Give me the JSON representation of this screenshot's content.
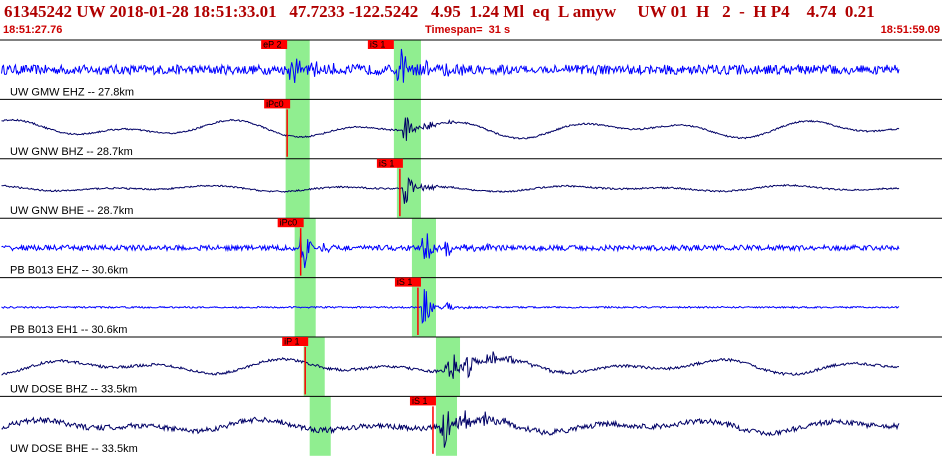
{
  "header": {
    "title": "61345242 UW 2018-01-28 18:51:33.01   47.7233 -122.5242   4.95  1.24 Ml  eq  L amyw     UW 01  H   2  -  H P4    4.74  0.21",
    "time_start": "18:51:27.76",
    "timespan": "Timespan=  31 s",
    "time_end": "18:51:59.09"
  },
  "colors": {
    "title": "#b00000",
    "time_text": "#cc0000",
    "trace_blue": "#0000ff",
    "trace_dark": "#000066",
    "pick": "#ff0000",
    "window": "#90ee90",
    "separator": "#000000"
  },
  "chart_data": {
    "type": "line",
    "x_unit": "s",
    "xlim": [
      0,
      31.33
    ],
    "panels": [
      {
        "label": "UW GMW EHZ -- 27.8km",
        "color": "#0000ff",
        "noise": 0.18,
        "long_period": 0.0,
        "windows": [
          [
            9.5,
            10.3
          ],
          [
            13.1,
            14.0
          ]
        ],
        "picks": [
          {
            "label": "eP 2",
            "time": 9.45,
            "line": false
          },
          {
            "label": "iS 1",
            "time": 13.0,
            "line": false
          }
        ],
        "events": [
          {
            "time": 9.6,
            "amp": 0.45,
            "decay": 1.0
          },
          {
            "time": 13.2,
            "amp": 1.0,
            "decay": 0.9
          }
        ]
      },
      {
        "label": "UW GNW BHZ -- 28.7km",
        "color": "#000066",
        "noise": 0.03,
        "long_period": 0.35,
        "windows": [
          [
            9.5,
            10.3
          ],
          [
            13.1,
            14.0
          ]
        ],
        "picks": [
          {
            "label": "iPc0",
            "time": 9.55,
            "line": true
          }
        ],
        "events": [
          {
            "time": 13.4,
            "amp": 0.55,
            "decay": 0.7
          }
        ]
      },
      {
        "label": "UW GNW BHE -- 28.7km",
        "color": "#000066",
        "noise": 0.03,
        "long_period": 0.12,
        "windows": [
          [
            9.5,
            10.3
          ],
          [
            13.2,
            14.0
          ]
        ],
        "picks": [
          {
            "label": "iS 1",
            "time": 13.3,
            "line": true
          }
        ],
        "events": [
          {
            "time": 13.4,
            "amp": 0.9,
            "decay": 0.5
          }
        ]
      },
      {
        "label": "PB B013 EHZ -- 30.6km",
        "color": "#0000ff",
        "noise": 0.1,
        "long_period": 0.0,
        "windows": [
          [
            9.8,
            10.5
          ],
          [
            13.7,
            14.5
          ]
        ],
        "picks": [
          {
            "label": "iPc0",
            "time": 10.0,
            "line": true
          }
        ],
        "events": [
          {
            "time": 10.0,
            "amp": 0.9,
            "decay": 0.4
          },
          {
            "time": 14.0,
            "amp": 0.6,
            "decay": 0.9
          }
        ]
      },
      {
        "label": "PB B013 EH1 -- 30.6km",
        "color": "#0000ff",
        "noise": 0.03,
        "long_period": 0.0,
        "windows": [
          [
            9.8,
            10.5
          ],
          [
            13.7,
            14.5
          ]
        ],
        "picks": [
          {
            "label": "iS 1",
            "time": 13.9,
            "line": true
          }
        ],
        "events": [
          {
            "time": 14.0,
            "amp": 0.85,
            "decay": 0.5
          }
        ]
      },
      {
        "label": "UW DOSE BHZ -- 33.5km",
        "color": "#000066",
        "noise": 0.05,
        "long_period": 0.3,
        "windows": [
          [
            10.1,
            10.8
          ],
          [
            14.5,
            15.3
          ]
        ],
        "picks": [
          {
            "label": "iP 1",
            "time": 10.15,
            "line": true
          }
        ],
        "events": [
          {
            "time": 14.8,
            "amp": 0.95,
            "decay": 1.2
          }
        ]
      },
      {
        "label": "UW DOSE BHE -- 33.5km",
        "color": "#000066",
        "noise": 0.1,
        "long_period": 0.25,
        "windows": [
          [
            10.3,
            11.0
          ],
          [
            14.5,
            15.2
          ]
        ],
        "picks": [
          {
            "label": "iS 1",
            "time": 14.4,
            "line": true
          }
        ],
        "events": [
          {
            "time": 14.6,
            "amp": 0.95,
            "decay": 1.1
          }
        ]
      }
    ]
  }
}
